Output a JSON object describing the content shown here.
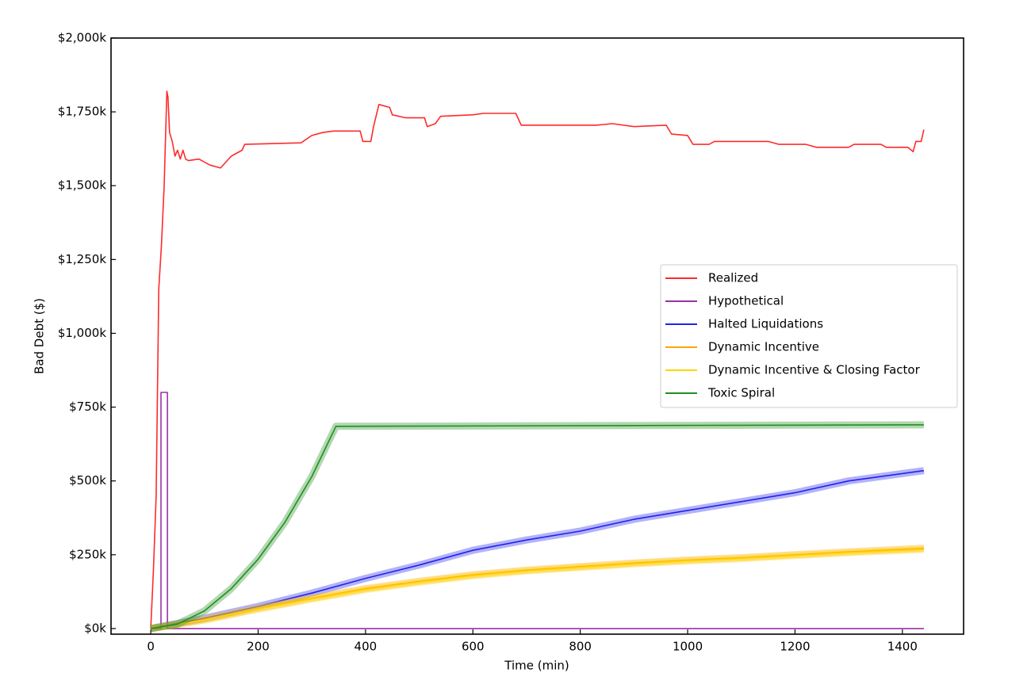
{
  "chart_data": {
    "type": "line",
    "x_label": "Time (min)",
    "y_label": "Bad Debt ($)",
    "xlim": [
      -74,
      1514
    ],
    "ylim": [
      -19000,
      2000000
    ],
    "xticks": [
      0,
      200,
      400,
      600,
      800,
      1000,
      1200,
      1400
    ],
    "yticks": [
      {
        "value": 0,
        "label": "$0k"
      },
      {
        "value": 250000,
        "label": "$250k"
      },
      {
        "value": 500000,
        "label": "$500k"
      },
      {
        "value": 750000,
        "label": "$750k"
      },
      {
        "value": 1000000,
        "label": "$1,000k"
      },
      {
        "value": 1250000,
        "label": "$1,250k"
      },
      {
        "value": 1500000,
        "label": "$1,500k"
      },
      {
        "value": 1750000,
        "label": "$1,750k"
      },
      {
        "value": 2000000,
        "label": "$2,000k"
      }
    ],
    "grid": false,
    "legend": "center right",
    "series": [
      {
        "name": "Realized",
        "color": "#ff2a2a",
        "x": [
          0,
          5,
          10,
          15,
          20,
          25,
          30,
          32,
          35,
          40,
          45,
          50,
          55,
          60,
          65,
          70,
          90,
          110,
          130,
          150,
          170,
          175,
          280,
          300,
          320,
          340,
          390,
          395,
          410,
          415,
          425,
          445,
          450,
          475,
          510,
          515,
          530,
          540,
          600,
          620,
          680,
          690,
          830,
          860,
          900,
          960,
          970,
          1000,
          1010,
          1040,
          1050,
          1150,
          1170,
          1220,
          1240,
          1300,
          1310,
          1360,
          1370,
          1410,
          1420,
          1425,
          1435,
          1440
        ],
        "values": [
          0,
          200000,
          450000,
          1150000,
          1300000,
          1500000,
          1820000,
          1800000,
          1680000,
          1650000,
          1600000,
          1620000,
          1590000,
          1620000,
          1590000,
          1585000,
          1590000,
          1570000,
          1560000,
          1600000,
          1620000,
          1640000,
          1645000,
          1670000,
          1680000,
          1685000,
          1685000,
          1650000,
          1650000,
          1700000,
          1775000,
          1765000,
          1740000,
          1730000,
          1730000,
          1700000,
          1710000,
          1735000,
          1740000,
          1745000,
          1745000,
          1705000,
          1705000,
          1710000,
          1700000,
          1705000,
          1675000,
          1670000,
          1640000,
          1640000,
          1650000,
          1650000,
          1640000,
          1640000,
          1630000,
          1630000,
          1640000,
          1640000,
          1630000,
          1630000,
          1615000,
          1650000,
          1650000,
          1690000
        ]
      },
      {
        "name": "Hypothetical",
        "color": "#9b30a8",
        "x": [
          0,
          19,
          19,
          31,
          31,
          1440
        ],
        "values": [
          0,
          0,
          800000,
          800000,
          0,
          0
        ]
      },
      {
        "name": "Halted Liquidations",
        "color": "#2222ee",
        "x": [
          0,
          100,
          200,
          300,
          400,
          500,
          600,
          700,
          800,
          900,
          1000,
          1100,
          1200,
          1300,
          1440
        ],
        "values": [
          0,
          35000,
          75000,
          120000,
          170000,
          215000,
          265000,
          300000,
          330000,
          370000,
          400000,
          430000,
          460000,
          500000,
          535000
        ]
      },
      {
        "name": "Dynamic Incentive",
        "color": "#ffa500",
        "x": [
          0,
          100,
          200,
          300,
          400,
          500,
          600,
          700,
          800,
          900,
          1000,
          1100,
          1200,
          1300,
          1440
        ],
        "values": [
          0,
          30000,
          68000,
          103000,
          135000,
          160000,
          182000,
          198000,
          210000,
          222000,
          232000,
          240000,
          250000,
          260000,
          272000
        ]
      },
      {
        "name": "Dynamic Incentive & Closing Factor",
        "color": "#ffd700",
        "x": [
          0,
          100,
          200,
          300,
          400,
          500,
          600,
          700,
          800,
          900,
          1000,
          1100,
          1200,
          1300,
          1440
        ],
        "values": [
          0,
          29000,
          66000,
          100000,
          132000,
          157000,
          179000,
          195000,
          207000,
          219000,
          229000,
          237000,
          247000,
          257000,
          268000
        ]
      },
      {
        "name": "Toxic Spiral",
        "color": "#1f8f1f",
        "x": [
          0,
          50,
          100,
          150,
          200,
          250,
          300,
          345,
          1440
        ],
        "values": [
          0,
          15000,
          60000,
          135000,
          235000,
          360000,
          515000,
          685000,
          690000
        ]
      }
    ]
  }
}
